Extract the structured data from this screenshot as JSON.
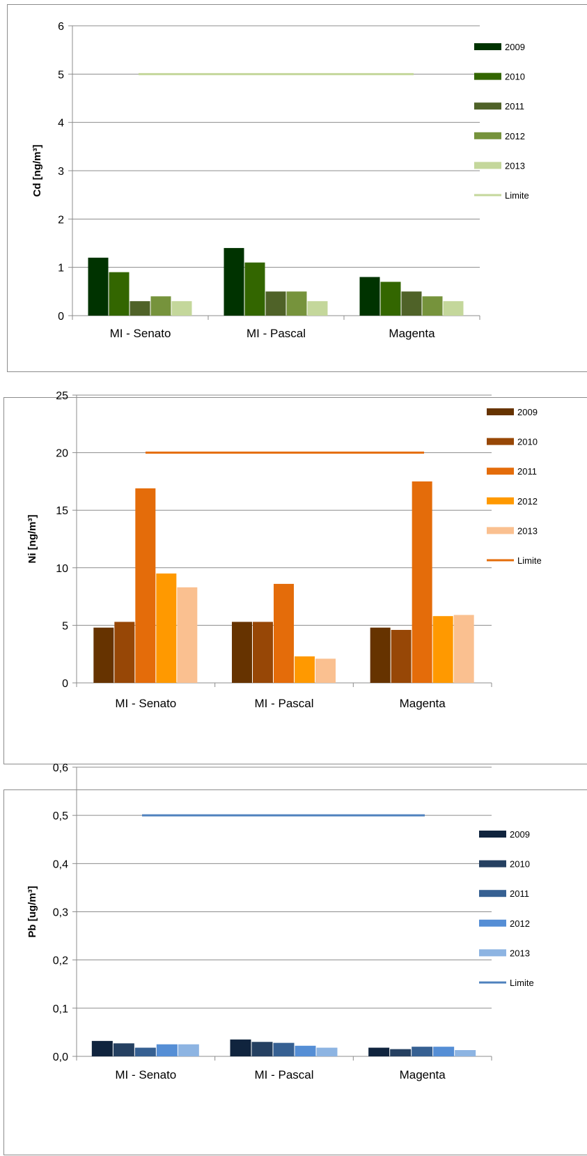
{
  "chart_data": [
    {
      "type": "bar",
      "categories": [
        "MI - Senato",
        "MI - Pascal",
        "Magenta"
      ],
      "ylabel": "Cd [ng/m³]",
      "ylim": [
        0,
        6
      ],
      "yticks": [
        "0",
        "1",
        "2",
        "3",
        "4",
        "5",
        "6"
      ],
      "grid": true,
      "legend_position": "right",
      "series": [
        {
          "name": "2009",
          "color": "#003300",
          "values": [
            1.2,
            1.4,
            0.8
          ]
        },
        {
          "name": "2010",
          "color": "#336600",
          "values": [
            0.9,
            1.1,
            0.7
          ]
        },
        {
          "name": "2011",
          "color": "#4f6228",
          "values": [
            0.3,
            0.5,
            0.5
          ]
        },
        {
          "name": "2012",
          "color": "#76933c",
          "values": [
            0.4,
            0.5,
            0.4
          ]
        },
        {
          "name": "2013",
          "color": "#c4d79b",
          "values": [
            0.3,
            0.3,
            0.3
          ]
        }
      ],
      "limit": {
        "name": "Limite",
        "value": 5,
        "color": "#c4d79b"
      }
    },
    {
      "type": "bar",
      "categories": [
        "MI - Senato",
        "MI - Pascal",
        "Magenta"
      ],
      "ylabel": "Ni  [ng/m³]",
      "ylim": [
        0,
        25
      ],
      "yticks": [
        "0",
        "5",
        "10",
        "15",
        "20",
        "25"
      ],
      "grid": true,
      "legend_position": "right",
      "series": [
        {
          "name": "2009",
          "color": "#663300",
          "values": [
            4.8,
            5.3,
            4.8
          ]
        },
        {
          "name": "2010",
          "color": "#974706",
          "values": [
            5.3,
            5.3,
            4.6
          ]
        },
        {
          "name": "2011",
          "color": "#e46c0a",
          "values": [
            16.9,
            8.6,
            17.5
          ]
        },
        {
          "name": "2012",
          "color": "#ff9900",
          "values": [
            9.5,
            2.3,
            5.8
          ]
        },
        {
          "name": "2013",
          "color": "#fac090",
          "values": [
            8.3,
            2.1,
            5.9
          ]
        }
      ],
      "limit": {
        "name": "Limite",
        "value": 20,
        "color": "#e46c0a"
      }
    },
    {
      "type": "bar",
      "categories": [
        "MI - Senato",
        "MI - Pascal",
        "Magenta"
      ],
      "ylabel": "Pb [ug/m³]",
      "ylim": [
        0,
        0.6
      ],
      "yticks": [
        "0,0",
        "0,1",
        "0,2",
        "0,3",
        "0,4",
        "0,5",
        "0,6"
      ],
      "grid": true,
      "legend_position": "right",
      "series": [
        {
          "name": "2009",
          "color": "#10243e",
          "values": [
            0.032,
            0.035,
            0.018
          ]
        },
        {
          "name": "2010",
          "color": "#254061",
          "values": [
            0.027,
            0.03,
            0.015
          ]
        },
        {
          "name": "2011",
          "color": "#366092",
          "values": [
            0.018,
            0.028,
            0.02
          ]
        },
        {
          "name": "2012",
          "color": "#558ed5",
          "values": [
            0.025,
            0.022,
            0.02
          ]
        },
        {
          "name": "2013",
          "color": "#8db4e2",
          "values": [
            0.025,
            0.018,
            0.013
          ]
        }
      ],
      "limit": {
        "name": "Limite",
        "value": 0.5,
        "color": "#4f81bd"
      }
    }
  ]
}
